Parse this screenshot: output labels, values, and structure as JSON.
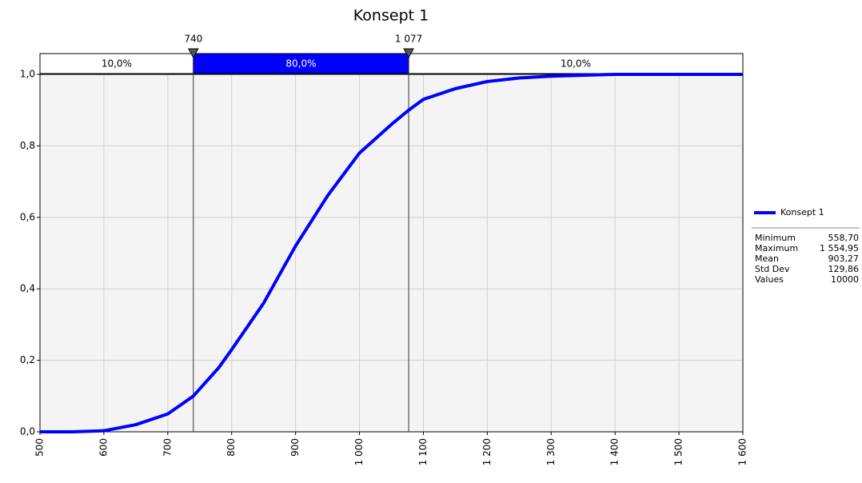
{
  "chart_data": {
    "type": "line",
    "title": "Konsept 1",
    "x": [
      500,
      550,
      600,
      650,
      700,
      740,
      780,
      800,
      850,
      900,
      950,
      1000,
      1050,
      1077,
      1100,
      1150,
      1200,
      1250,
      1300,
      1400,
      1500,
      1600
    ],
    "series": [
      {
        "name": "Konsept 1",
        "color": "#0000ff",
        "values": [
          0,
          0,
          0.003,
          0.02,
          0.05,
          0.1,
          0.18,
          0.23,
          0.36,
          0.52,
          0.66,
          0.78,
          0.86,
          0.9,
          0.93,
          0.96,
          0.98,
          0.99,
          0.995,
          1,
          1,
          1
        ]
      }
    ],
    "xlim": [
      500,
      1600
    ],
    "xticks": [
      500,
      600,
      700,
      800,
      900,
      {
        "value": 1000,
        "label": "1 000"
      },
      {
        "value": 1100,
        "label": "1 100"
      },
      {
        "value": 1200,
        "label": "1 200"
      },
      {
        "value": 1300,
        "label": "1 300"
      },
      {
        "value": 1400,
        "label": "1 400"
      },
      {
        "value": 1500,
        "label": "1 500"
      },
      {
        "value": 1600,
        "label": "1 600"
      }
    ],
    "ylim": [
      0,
      1
    ],
    "yticks": [
      {
        "value": 0,
        "label": "0,0"
      },
      {
        "value": 0.2,
        "label": "0,2"
      },
      {
        "value": 0.4,
        "label": "0,4"
      },
      {
        "value": 0.6,
        "label": "0,6"
      },
      {
        "value": 0.8,
        "label": "0,8"
      },
      {
        "value": 1,
        "label": "1,0"
      }
    ],
    "grid": true,
    "delimiters": [
      740,
      {
        "value": 1077,
        "label": "1 077"
      }
    ],
    "band_labels": [
      "10,0%",
      "80,0%",
      "10,0%"
    ],
    "band_color": "#0000ff",
    "stats": [
      {
        "name": "Minimum",
        "value": "558,70"
      },
      {
        "name": "Maximum",
        "value": "1 554,95"
      },
      {
        "name": "Mean",
        "value": "903,27"
      },
      {
        "name": "Std Dev",
        "value": "129,86"
      },
      {
        "name": "Values",
        "value": "10000"
      }
    ]
  }
}
